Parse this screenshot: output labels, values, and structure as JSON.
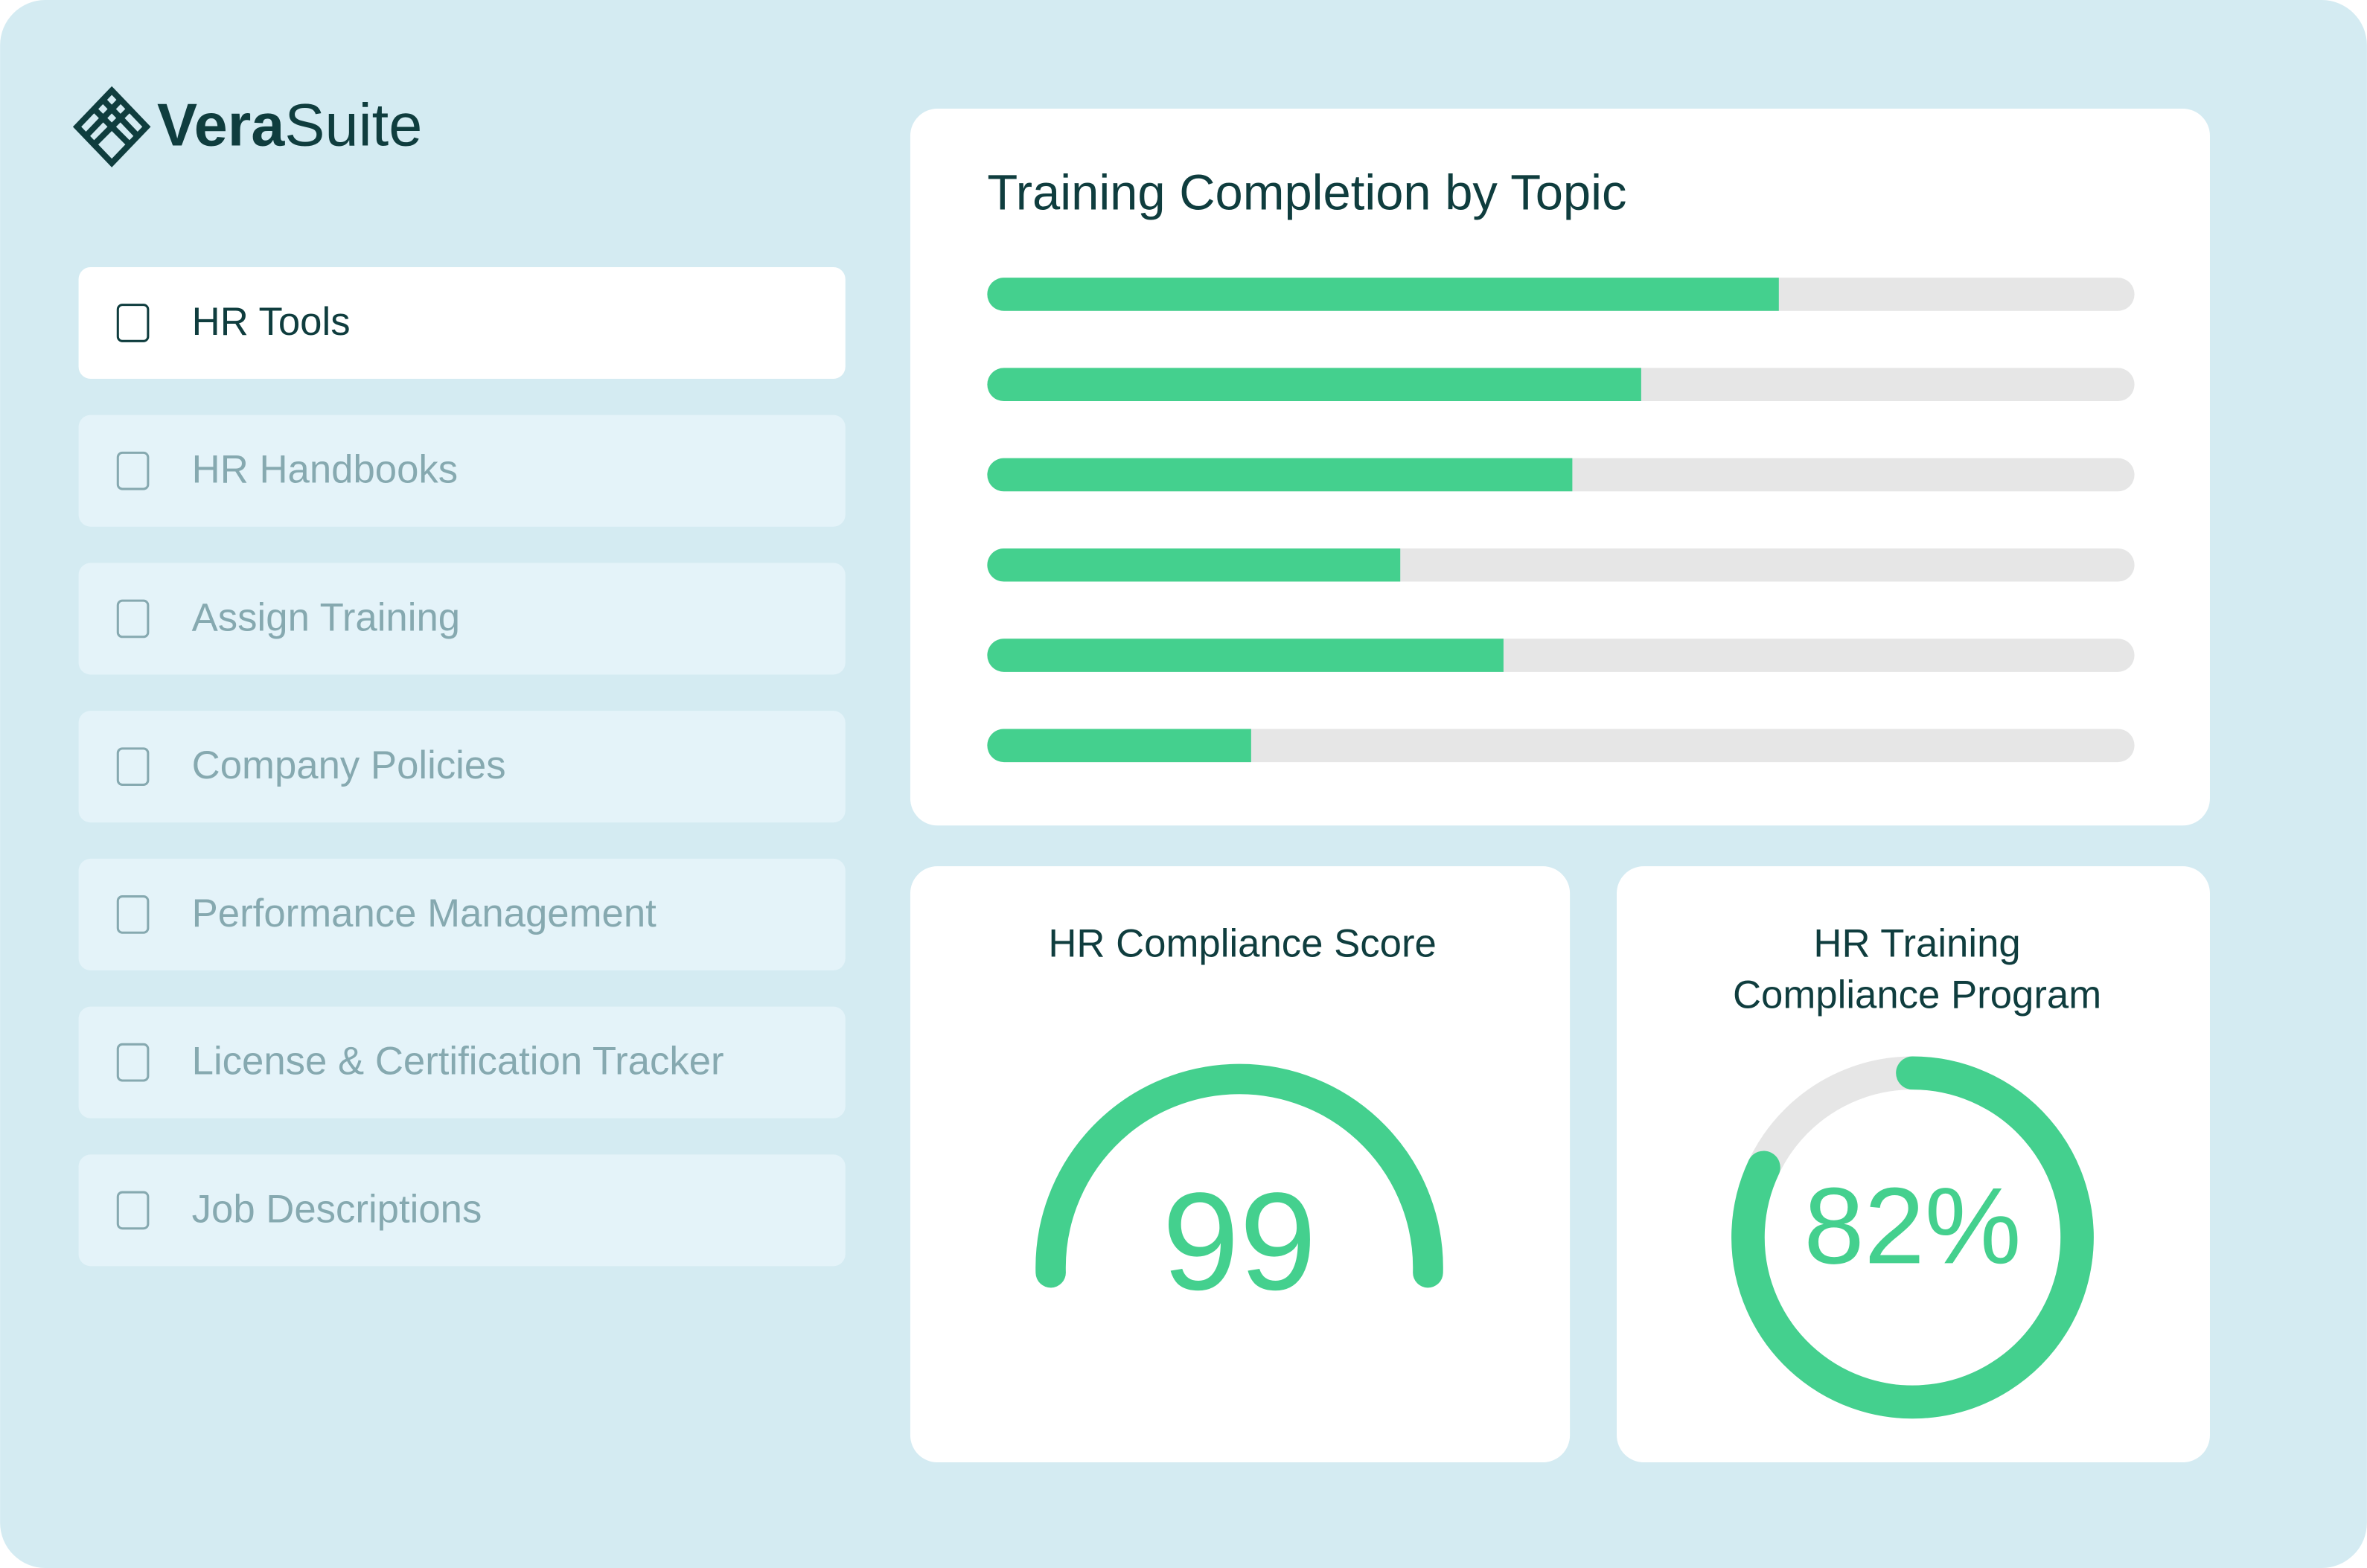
{
  "brand": {
    "bold": "Vera",
    "light": "Suite"
  },
  "nav": [
    {
      "label": "HR Tools",
      "active": true
    },
    {
      "label": "HR Handbooks",
      "active": false
    },
    {
      "label": "Assign Training",
      "active": false
    },
    {
      "label": "Company Policies",
      "active": false
    },
    {
      "label": "Performance Management",
      "active": false
    },
    {
      "label": "License & Certification Tracker",
      "active": false
    },
    {
      "label": "Job Descriptions",
      "active": false
    }
  ],
  "chart_data": [
    {
      "type": "bar",
      "title": "Training Completion by Topic",
      "categories": [
        null,
        null,
        null,
        null,
        null,
        null
      ],
      "values": [
        69,
        57,
        51,
        36,
        45,
        23
      ],
      "xlim": [
        0,
        100
      ],
      "color": "#44d08e",
      "track_color": "#e6e6e6"
    },
    {
      "type": "gauge",
      "title": "HR Compliance Score",
      "values": [
        99
      ],
      "color": "#44d08e"
    },
    {
      "type": "ring",
      "title": [
        "HR Training",
        "Compliance Program"
      ],
      "values": [
        82
      ],
      "value_labels": [
        "82%"
      ],
      "range": [
        0,
        100
      ],
      "color": "#44d08e",
      "track_color": "#e6e6e6"
    }
  ]
}
